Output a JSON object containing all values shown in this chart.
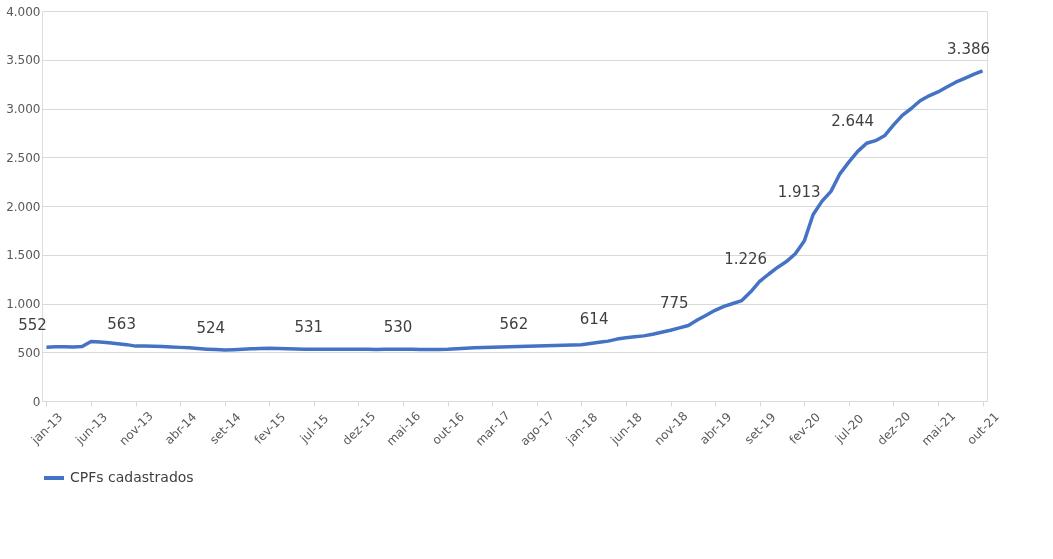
{
  "chart_data": {
    "type": "line",
    "categories": [
      "jan-13",
      null,
      null,
      null,
      null,
      "jun-13",
      null,
      null,
      null,
      null,
      "nov-13",
      null,
      null,
      null,
      null,
      "abr-14",
      null,
      null,
      null,
      null,
      "set-14",
      null,
      null,
      null,
      null,
      "fev-15",
      null,
      null,
      null,
      null,
      "jul-15",
      null,
      null,
      null,
      null,
      "dez-15",
      null,
      null,
      null,
      null,
      "mai-16",
      null,
      null,
      null,
      null,
      "out-16",
      null,
      null,
      null,
      null,
      "mar-17",
      null,
      null,
      null,
      null,
      "ago-17",
      null,
      null,
      null,
      null,
      "jan-18",
      null,
      null,
      null,
      null,
      "jun-18",
      null,
      null,
      null,
      null,
      "nov-18",
      null,
      null,
      null,
      null,
      "abr-19",
      null,
      null,
      null,
      null,
      "set-19",
      null,
      null,
      null,
      null,
      "fev-20",
      null,
      null,
      null,
      null,
      "jul-20",
      null,
      null,
      null,
      null,
      "dez-20",
      null,
      null,
      null,
      null,
      "mai-21",
      null,
      null,
      null,
      null,
      "out-21"
    ],
    "series": [
      {
        "name": "CPFs cadastrados",
        "color": "#4472c4",
        "values": [
          552,
          556,
          556,
          555,
          558,
          610,
          605,
          598,
          588,
          578,
          563,
          565,
          562,
          558,
          555,
          550,
          545,
          538,
          532,
          528,
          524,
          526,
          530,
          535,
          538,
          540,
          538,
          535,
          533,
          532,
          531,
          531,
          531,
          530,
          530,
          531,
          530,
          529,
          532,
          532,
          531,
          530,
          528,
          527,
          528,
          530,
          535,
          540,
          545,
          548,
          552,
          555,
          557,
          560,
          562,
          564,
          567,
          570,
          573,
          575,
          578,
          590,
          602,
          614,
          635,
          648,
          658,
          668,
          685,
          705,
          725,
          750,
          775,
          830,
          880,
          930,
          970,
          1000,
          1030,
          1120,
          1226,
          1300,
          1370,
          1430,
          1510,
          1640,
          1913,
          2050,
          2150,
          2330,
          2450,
          2560,
          2644,
          2670,
          2720,
          2830,
          2930,
          3000,
          3080,
          3130,
          3170,
          3220,
          3270,
          3310,
          3350,
          3386
        ],
        "value_labels": [
          "552",
          null,
          null,
          null,
          null,
          null,
          null,
          null,
          null,
          null,
          "563",
          null,
          null,
          null,
          null,
          null,
          null,
          null,
          null,
          null,
          "524",
          null,
          null,
          null,
          null,
          null,
          null,
          null,
          null,
          null,
          null,
          "531",
          null,
          null,
          null,
          null,
          null,
          null,
          null,
          null,
          null,
          "530",
          null,
          null,
          null,
          null,
          null,
          null,
          null,
          null,
          null,
          null,
          null,
          null,
          "562",
          null,
          null,
          null,
          null,
          null,
          null,
          null,
          null,
          "614",
          null,
          null,
          null,
          null,
          null,
          null,
          null,
          null,
          "775",
          null,
          null,
          null,
          null,
          null,
          null,
          null,
          "1.226",
          null,
          null,
          null,
          null,
          null,
          "1.913",
          null,
          null,
          null,
          null,
          null,
          "2.644",
          null,
          null,
          null,
          null,
          null,
          null,
          null,
          null,
          null,
          null,
          null,
          null,
          "3.386"
        ]
      }
    ],
    "ylim": [
      0,
      4000
    ],
    "yticks": [
      0,
      500,
      {
        "value": 1000,
        "label": "1.000"
      },
      {
        "value": 1500,
        "label": "1.500"
      },
      {
        "value": 2000,
        "label": "2.000"
      },
      {
        "value": 2500,
        "label": "2.500"
      },
      {
        "value": 3000,
        "label": "3.000"
      },
      {
        "value": 3500,
        "label": "3.500"
      },
      {
        "value": 4000,
        "label": "4.000"
      }
    ],
    "grid": "y",
    "legend": "bottom",
    "marker": "none",
    "line_style": "solid"
  }
}
